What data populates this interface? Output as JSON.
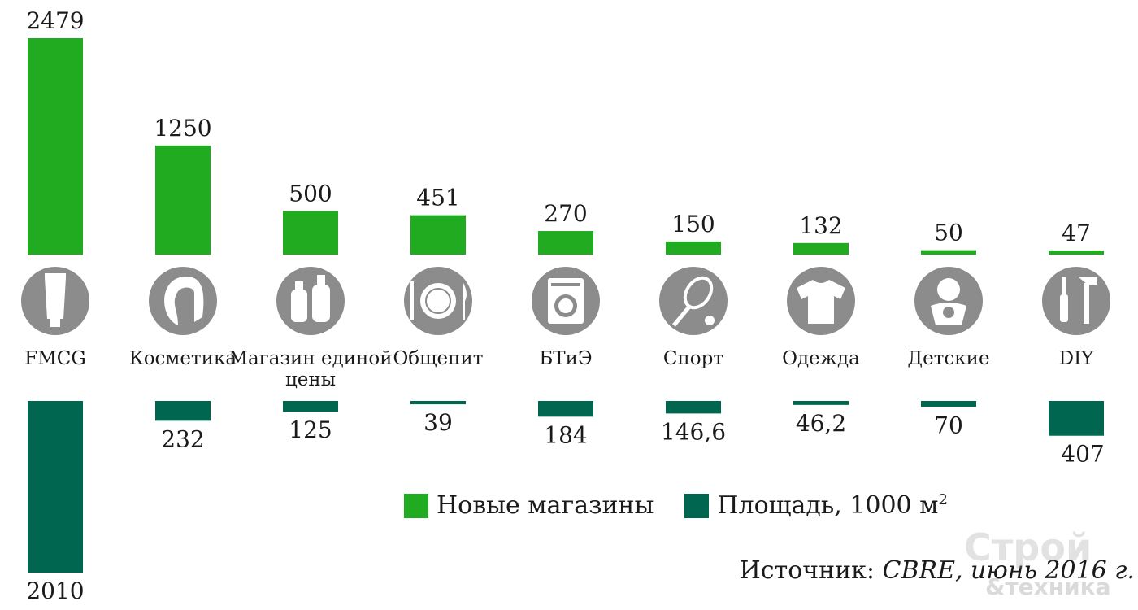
{
  "chart_data": {
    "type": "bar",
    "categories": [
      [
        "FMCG"
      ],
      [
        "Косметика"
      ],
      [
        "Магазин единой",
        "цены"
      ],
      [
        "Общепит"
      ],
      [
        "БТиЭ"
      ],
      [
        "Спорт"
      ],
      [
        "Одежда"
      ],
      [
        "Детские"
      ],
      [
        "DIY"
      ]
    ],
    "icons": [
      "tube-icon",
      "cosmetics-head-icon",
      "bottles-icon",
      "plate-icon",
      "washing-machine-icon",
      "tennis-racket-icon",
      "tshirt-icon",
      "baby-icon",
      "tools-icon"
    ],
    "series": [
      {
        "name": "Новые магазины",
        "values": [
          2479,
          1250,
          500,
          451,
          270,
          150,
          132,
          50,
          47
        ],
        "labels": [
          "2479",
          "1250",
          "500",
          "451",
          "270",
          "150",
          "132",
          "50",
          "47"
        ],
        "color": "#21ab21"
      },
      {
        "name": "Площадь, 1000 м",
        "name_superscript": "2",
        "values": [
          2010,
          232,
          125,
          39,
          184,
          146.6,
          46.2,
          70,
          407
        ],
        "labels": [
          "2010",
          "232",
          "125",
          "39",
          "184",
          "146,6",
          "46,2",
          "70",
          "407"
        ],
        "color": "#006650"
      }
    ],
    "legend": "bottom-center",
    "grid": false,
    "icon_color": "#8c8c8c"
  },
  "source": {
    "prefix": "Источник: ",
    "italic": "CBRE, июнь 2016 г."
  },
  "watermark": {
    "line1": "Строй",
    "line2": "&техника"
  }
}
